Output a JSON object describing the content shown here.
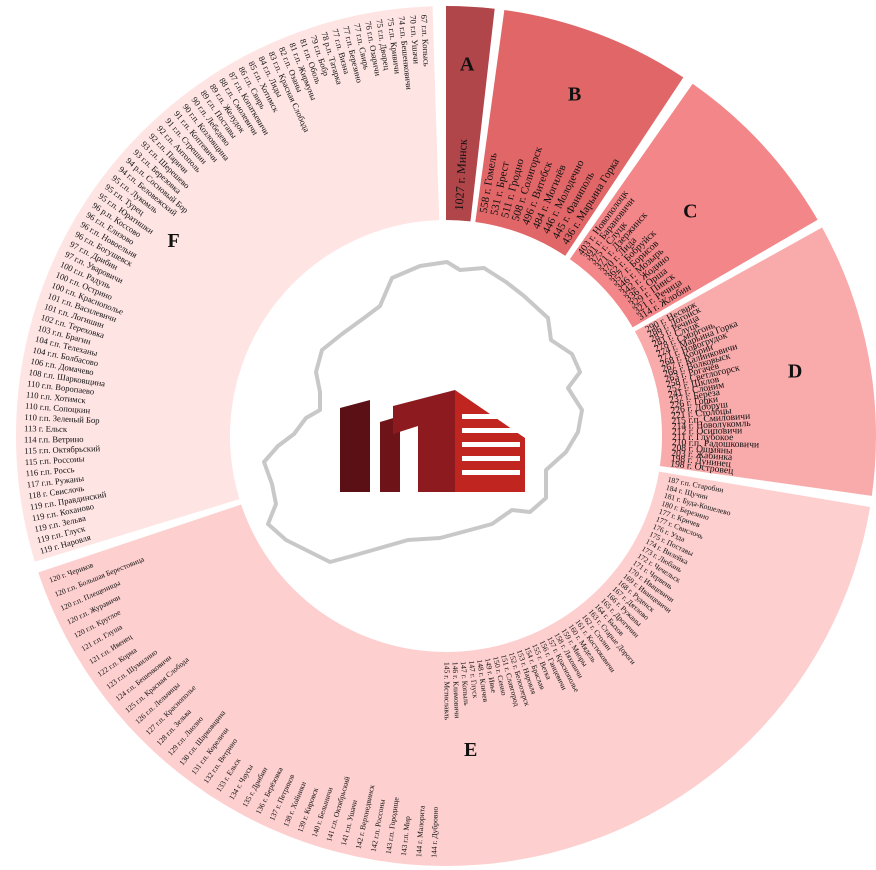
{
  "chart_data": {
    "type": "sunburst",
    "groups": [
      {
        "label": "A",
        "color": "#b0454a",
        "items": [
          {
            "name": "г. Минск",
            "value": 1027
          }
        ]
      },
      {
        "label": "B",
        "color": "#e06668",
        "items": [
          {
            "name": "г. Гомель",
            "value": 558
          },
          {
            "name": "г. Брест",
            "value": 531
          },
          {
            "name": "г. Гродно",
            "value": 511
          },
          {
            "name": "г. Солигорск",
            "value": 508
          },
          {
            "name": "г. Витебск",
            "value": 496
          },
          {
            "name": "г. Могилёв",
            "value": 484
          },
          {
            "name": "г. Молодечно",
            "value": 446
          },
          {
            "name": "г. Фаниполь",
            "value": 445
          },
          {
            "name": "г. Марьина Горка",
            "value": 436
          }
        ]
      },
      {
        "label": "C",
        "color": "#f38688",
        "items": [
          {
            "name": "г. Новополоцк",
            "value": 403
          },
          {
            "name": "г. Барановичи",
            "value": 391
          },
          {
            "name": "г. Слуцк",
            "value": 375
          },
          {
            "name": "г. Дзержинск",
            "value": 371
          },
          {
            "name": "г. Лида",
            "value": 370
          },
          {
            "name": "г. Бобруйск",
            "value": 362
          },
          {
            "name": "г. Борисов",
            "value": 357
          },
          {
            "name": "г. Мозырь",
            "value": 346
          },
          {
            "name": "г. Жодино",
            "value": 342
          },
          {
            "name": "г. Орша",
            "value": 336
          },
          {
            "name": "г. Пинск",
            "value": 329
          },
          {
            "name": "г. Речица",
            "value": 321
          },
          {
            "name": "г. Жлобин",
            "value": 314
          }
        ]
      },
      {
        "label": "D",
        "color": "#f9aaab",
        "items": [
          {
            "name": "г. Несвиж",
            "value": 290
          },
          {
            "name": "г. Логойск",
            "value": 286
          },
          {
            "name": "г. Речица",
            "value": 283
          },
          {
            "name": "г. Слуцк",
            "value": 281
          },
          {
            "name": "г. Сморгонь",
            "value": 278
          },
          {
            "name": "г. Марьина Горка",
            "value": 274
          },
          {
            "name": "г. Новогрудок",
            "value": 271
          },
          {
            "name": "г. Кобрин",
            "value": 268
          },
          {
            "name": "г. Калинковичи",
            "value": 267
          },
          {
            "name": "г. Волковыск",
            "value": 266
          },
          {
            "name": "г. Рогачёв",
            "value": 263
          },
          {
            "name": "г. Светлогорск",
            "value": 258
          },
          {
            "name": "г. Шклов",
            "value": 252
          },
          {
            "name": "г. Слоним",
            "value": 241
          },
          {
            "name": "г. Берёза",
            "value": 237
          },
          {
            "name": "г. Горки",
            "value": 226
          },
          {
            "name": "г. Добруш",
            "value": 226
          },
          {
            "name": "г. Столбцы",
            "value": 221
          },
          {
            "name": "г.п. Смиловичи",
            "value": 215
          },
          {
            "name": "г. Новолукомль",
            "value": 214
          },
          {
            "name": "г. Осиповичи",
            "value": 212
          },
          {
            "name": "г. Глубокое",
            "value": 211
          },
          {
            "name": "г.п. Радошковичи",
            "value": 210
          },
          {
            "name": "г. Ошмяны",
            "value": 208
          },
          {
            "name": "г. Жабинка",
            "value": 203
          },
          {
            "name": "г. Лунинец",
            "value": 198
          },
          {
            "name": "г. Островец",
            "value": 198
          }
        ]
      },
      {
        "label": "E",
        "color": "#fdcfcf",
        "items": [
          {
            "name": "г.п. Старобин",
            "value": 187
          },
          {
            "name": "г. Щучин",
            "value": 184
          },
          {
            "name": "г. Буда-Кошелево",
            "value": 181
          },
          {
            "name": "г. Березино",
            "value": 180
          },
          {
            "name": "г. Кричев",
            "value": 177
          },
          {
            "name": "г. Свислочь",
            "value": 177
          },
          {
            "name": "г. Узда",
            "value": 176
          },
          {
            "name": "г. Поставы",
            "value": 175
          },
          {
            "name": "г. Вилейка",
            "value": 174
          },
          {
            "name": "г. Любань",
            "value": 173
          },
          {
            "name": "г. Чечельск",
            "value": 172
          },
          {
            "name": "г. Червень",
            "value": 171
          },
          {
            "name": "г. Ивацевичи",
            "value": 170
          },
          {
            "name": "г. Иванцевичи",
            "value": 169
          },
          {
            "name": "г. Руденск",
            "value": 168
          },
          {
            "name": "г. Дятлово",
            "value": 167
          },
          {
            "name": "г. Ружаны",
            "value": 166
          },
          {
            "name": "г. Дрогичин",
            "value": 165
          },
          {
            "name": "г. Быхов",
            "value": 164
          },
          {
            "name": "г. Старые Дороги",
            "value": 163
          },
          {
            "name": "г. Столин",
            "value": 162
          },
          {
            "name": "г. Костюковичи",
            "value": 161
          },
          {
            "name": "г. Мядель",
            "value": 160
          },
          {
            "name": "г. Миоры",
            "value": 159
          },
          {
            "name": "г. Ляховичи",
            "value": 158
          },
          {
            "name": "г. Краснополье",
            "value": 157
          },
          {
            "name": "г. Ганцевичи",
            "value": 156
          },
          {
            "name": "г. Ветка",
            "value": 155
          },
          {
            "name": "г. Браслав",
            "value": 154
          },
          {
            "name": "г. Наровля",
            "value": 153
          },
          {
            "name": "г. Белоозерск",
            "value": 152
          },
          {
            "name": "г. Славгород",
            "value": 151
          },
          {
            "name": "г. Сенно",
            "value": 150
          },
          {
            "name": "г. Ивье",
            "value": 149
          },
          {
            "name": "г. Кличев",
            "value": 148
          },
          {
            "name": "г. Глуск",
            "value": 147
          },
          {
            "name": "г. Копыль",
            "value": 147
          },
          {
            "name": "г. Климовичи",
            "value": 146
          },
          {
            "name": "г. Мстиславль",
            "value": 145
          },
          {
            "name": "г. Дубровно",
            "value": 144
          },
          {
            "name": "г. Малорита",
            "value": 144
          },
          {
            "name": "г.п. Мир",
            "value": 143
          },
          {
            "name": "г.п. Городище",
            "value": 143
          },
          {
            "name": "г.п. Россоны",
            "value": 142
          },
          {
            "name": "г. Верхнедвинск",
            "value": 142
          },
          {
            "name": "г.п. Ушачи",
            "value": 141
          },
          {
            "name": "г.п. Октябрьский",
            "value": 141
          },
          {
            "name": "г. Белыничи",
            "value": 140
          },
          {
            "name": "г. Кировск",
            "value": 139
          },
          {
            "name": "г. Хойники",
            "value": 138
          },
          {
            "name": "г. Петриков",
            "value": 137
          },
          {
            "name": "г. Берёзовка",
            "value": 136
          },
          {
            "name": "г. Дрибин",
            "value": 135
          },
          {
            "name": "г. Чаусы",
            "value": 134
          },
          {
            "name": "г. Ельск",
            "value": 133
          },
          {
            "name": "г.п. Ветрино",
            "value": 132
          },
          {
            "name": "г.п. Кореличи",
            "value": 131
          },
          {
            "name": "г.п. Шарковщина",
            "value": 130
          },
          {
            "name": "г.п. Лиозно",
            "value": 129
          },
          {
            "name": "г.п. Зельва",
            "value": 128
          },
          {
            "name": "г.п. Краснополье",
            "value": 127
          },
          {
            "name": "г.п. Лельчицы",
            "value": 126
          },
          {
            "name": "г.п. Красная Слобода",
            "value": 125
          },
          {
            "name": "г.п. Бешенковичи",
            "value": 124
          },
          {
            "name": "г.п. Шумилино",
            "value": 123
          },
          {
            "name": "г.п. Корма",
            "value": 122
          },
          {
            "name": "г.п. Ивенец",
            "value": 121
          },
          {
            "name": "г.п. Глуша",
            "value": 121
          },
          {
            "name": "г.п. Круглое",
            "value": 120
          },
          {
            "name": "г.п. Журавичи",
            "value": 120
          },
          {
            "name": "г.п. Плещеницы",
            "value": 120
          },
          {
            "name": "г.п. Большая Берестовица",
            "value": 120
          },
          {
            "name": "г. Чериков",
            "value": 120
          }
        ]
      },
      {
        "label": "F",
        "color": "#ffe4e4",
        "items": [
          {
            "name": "г. Наровля",
            "value": 119
          },
          {
            "name": "г.п. Глуск",
            "value": 119
          },
          {
            "name": "г.п. Зельва",
            "value": 119
          },
          {
            "name": "г.п. Коханово",
            "value": 119
          },
          {
            "name": "г.п. Правдинский",
            "value": 119
          },
          {
            "name": "г. Свислочь",
            "value": 118
          },
          {
            "name": "г.п. Ружаны",
            "value": 117
          },
          {
            "name": "г.п. Россь",
            "value": 116
          },
          {
            "name": "г.п. Россоны",
            "value": 115
          },
          {
            "name": "г.п. Октябрьский",
            "value": 115
          },
          {
            "name": "г.п. Ветрино",
            "value": 114
          },
          {
            "name": "г. Ельск",
            "value": 113
          },
          {
            "name": "г.п. Зеленый Бор",
            "value": 110
          },
          {
            "name": "г.п. Сопоцкин",
            "value": 110
          },
          {
            "name": "г.п. Хотимск",
            "value": 110
          },
          {
            "name": "г.п. Воропаево",
            "value": 110
          },
          {
            "name": "г.п. Шарковщина",
            "value": 108
          },
          {
            "name": "г.п. Домачево",
            "value": 106
          },
          {
            "name": "г.п. Болбасово",
            "value": 104
          },
          {
            "name": "г.п. Телеханы",
            "value": 104
          },
          {
            "name": "г.п. Брагин",
            "value": 103
          },
          {
            "name": "г.п. Тереховка",
            "value": 102
          },
          {
            "name": "г.п. Логишин",
            "value": 101
          },
          {
            "name": "г.п. Василевичи",
            "value": 101
          },
          {
            "name": "г.п. Краснополье",
            "value": 100
          },
          {
            "name": "г.п. Острино",
            "value": 100
          },
          {
            "name": "г.п. Радунь",
            "value": 100
          },
          {
            "name": "г.п. Уваровичи",
            "value": 97
          },
          {
            "name": "г.п. Дрибин",
            "value": 97
          },
          {
            "name": "г.п. Богушевск",
            "value": 96
          },
          {
            "name": "г.п. Новоельня",
            "value": 96
          },
          {
            "name": "г.п. Елизово",
            "value": 96
          },
          {
            "name": "р.п. Коссово",
            "value": 96
          },
          {
            "name": "г.п. Юратишки",
            "value": 95
          },
          {
            "name": "г.п. Турец",
            "value": 95
          },
          {
            "name": "г.п. Лукомль",
            "value": 95
          },
          {
            "name": "г.п. Беловежский",
            "value": 94
          },
          {
            "name": "р.п. Сосновый Бор",
            "value": 94
          },
          {
            "name": "г.п. Березовка",
            "value": 93
          },
          {
            "name": "г.п. Шерешево",
            "value": 93
          },
          {
            "name": "г.п. Паричи",
            "value": 92
          },
          {
            "name": "г.п. Антополь",
            "value": 92
          },
          {
            "name": "г.п. Стрешин",
            "value": 91
          },
          {
            "name": "г.п. Коптевичи",
            "value": 91
          },
          {
            "name": "г.п. Козловщина",
            "value": 90
          },
          {
            "name": "г.п. Лебедево",
            "value": 90
          },
          {
            "name": "г.п. Поставы",
            "value": 89
          },
          {
            "name": "г.п. Желудок",
            "value": 89
          },
          {
            "name": "г.п. Смолевичи",
            "value": 88
          },
          {
            "name": "г.п. Копаткевичи",
            "value": 87
          },
          {
            "name": "г.п. Свирь",
            "value": 86
          },
          {
            "name": "г.п. Хотимск",
            "value": 85
          },
          {
            "name": "г.п. Ляды",
            "value": 84
          },
          {
            "name": "г.п. Красная Слобода",
            "value": 83
          },
          {
            "name": "г.п. Озаны",
            "value": 82
          },
          {
            "name": "г.п. Жирмуны",
            "value": 81
          },
          {
            "name": "г.п. Оболь",
            "value": 81
          },
          {
            "name": "г.п. Бобр",
            "value": 79
          },
          {
            "name": "р.п. Татарка",
            "value": 78
          },
          {
            "name": "г.п. Визна",
            "value": 77
          },
          {
            "name": "г.п. Березино",
            "value": 77
          },
          {
            "name": "г.п. Свирь",
            "value": 77
          },
          {
            "name": "г.п. Озаричи",
            "value": 76
          },
          {
            "name": "г.п. Дворец",
            "value": 75
          },
          {
            "name": "г.п. Кривичи",
            "value": 75
          },
          {
            "name": "г.п. Бешенковичи",
            "value": 74
          },
          {
            "name": "г.п. Ушачи",
            "value": 70
          },
          {
            "name": "г.п. Копысь",
            "value": 67
          }
        ]
      }
    ]
  }
}
